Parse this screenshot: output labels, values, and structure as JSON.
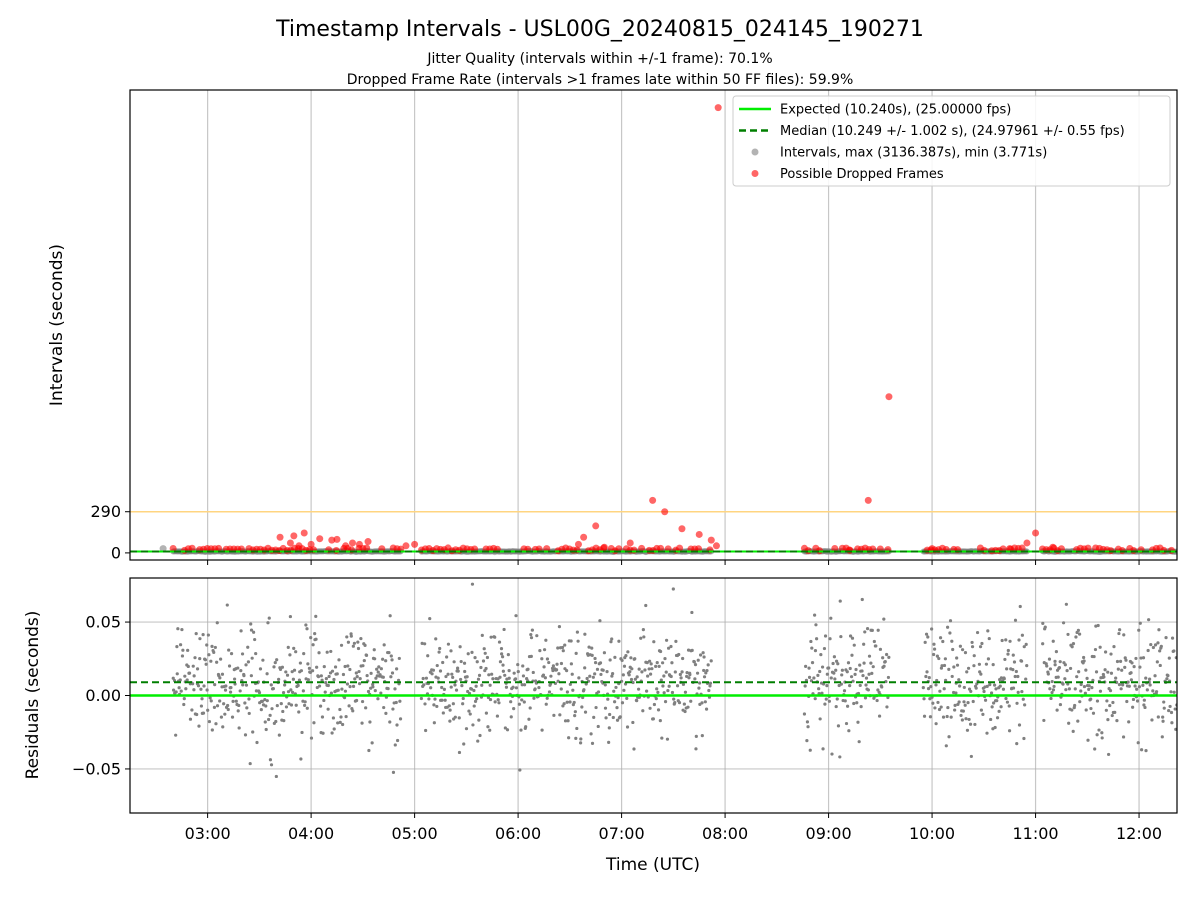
{
  "figure": {
    "title": "Timestamp Intervals - USL00G_20240815_024145_190271",
    "subtitle_1": "Jitter Quality (intervals within +/-1 frame): 70.1%",
    "subtitle_2": "Dropped Frame Rate (intervals >1 frames late within 50 FF files): 59.9%"
  },
  "chart_data": [
    {
      "type": "scatter",
      "panel": "intervals",
      "ylabel": "Intervals (seconds)",
      "xlim": [
        "02:15",
        "12:22"
      ],
      "ylim": [
        -50,
        3260
      ],
      "yticks": [
        0,
        290
      ],
      "ytick_labels": [
        "0",
        "290"
      ],
      "threshold_line": {
        "value": 290,
        "color": "#ffd580"
      },
      "grid": "x",
      "legend_position": "top-right",
      "series": [
        {
          "name": "Expected (10.240s), (25.00000 fps)",
          "kind": "hline",
          "value": 10.24,
          "color": "#00ee00",
          "style": "solid"
        },
        {
          "name": "Median (10.249 +/- 1.002 s), (24.97961 +/- 0.55 fps)",
          "kind": "hline",
          "value": 10.249,
          "color": "#007f00",
          "style": "dashed"
        },
        {
          "name": "Intervals, max (3136.387s), min (3.771s)",
          "kind": "scatter",
          "color": "#808080"
        },
        {
          "name": "Possible Dropped Frames",
          "kind": "scatter",
          "color": "#ff0000",
          "points": [
            [
              "03:42",
              110
            ],
            [
              "03:48",
              70
            ],
            [
              "03:50",
              120
            ],
            [
              "03:53",
              50
            ],
            [
              "03:56",
              140
            ],
            [
              "04:00",
              60
            ],
            [
              "04:05",
              100
            ],
            [
              "04:12",
              90
            ],
            [
              "04:15",
              95
            ],
            [
              "04:20",
              50
            ],
            [
              "04:24",
              70
            ],
            [
              "04:28",
              60
            ],
            [
              "04:33",
              80
            ],
            [
              "04:55",
              50
            ],
            [
              "05:00",
              60
            ],
            [
              "06:35",
              60
            ],
            [
              "06:38",
              110
            ],
            [
              "06:45",
              190
            ],
            [
              "06:50",
              40
            ],
            [
              "07:05",
              70
            ],
            [
              "07:18",
              370
            ],
            [
              "07:25",
              290
            ],
            [
              "07:35",
              170
            ],
            [
              "07:45",
              130
            ],
            [
              "07:52",
              90
            ],
            [
              "07:55",
              50
            ],
            [
              "07:56",
              3136
            ],
            [
              "09:12",
              20
            ],
            [
              "09:23",
              370
            ],
            [
              "09:35",
              1100
            ],
            [
              "10:00",
              30
            ],
            [
              "10:45",
              30
            ],
            [
              "10:55",
              70
            ],
            [
              "11:00",
              140
            ],
            [
              "11:10",
              40
            ]
          ]
        }
      ]
    },
    {
      "type": "scatter",
      "panel": "residuals",
      "xlabel": "Time (UTC)",
      "ylabel": "Residuals (seconds)",
      "xlim": [
        "02:15",
        "12:22"
      ],
      "ylim": [
        -0.08,
        0.08
      ],
      "yticks": [
        -0.05,
        0.0,
        0.05
      ],
      "ytick_labels": [
        "−0.05",
        "0.00",
        "0.05"
      ],
      "xtick_labels": [
        "03:00",
        "04:00",
        "05:00",
        "06:00",
        "07:00",
        "08:00",
        "09:00",
        "10:00",
        "11:00",
        "12:00"
      ],
      "grid": "both",
      "expected_line": {
        "value": 0.0,
        "color": "#00ee00"
      },
      "median_line": {
        "value": 0.009,
        "color": "#007f00",
        "style": "dashed"
      },
      "point_color": "#808080",
      "data_segments": [
        [
          "02:40",
          "04:52"
        ],
        [
          "05:04",
          "07:52"
        ],
        [
          "08:46",
          "09:35"
        ],
        [
          "09:55",
          "10:55"
        ],
        [
          "11:04",
          "12:22"
        ]
      ],
      "residual_spread": {
        "mean": 0.009,
        "stdev": 0.019
      }
    }
  ]
}
